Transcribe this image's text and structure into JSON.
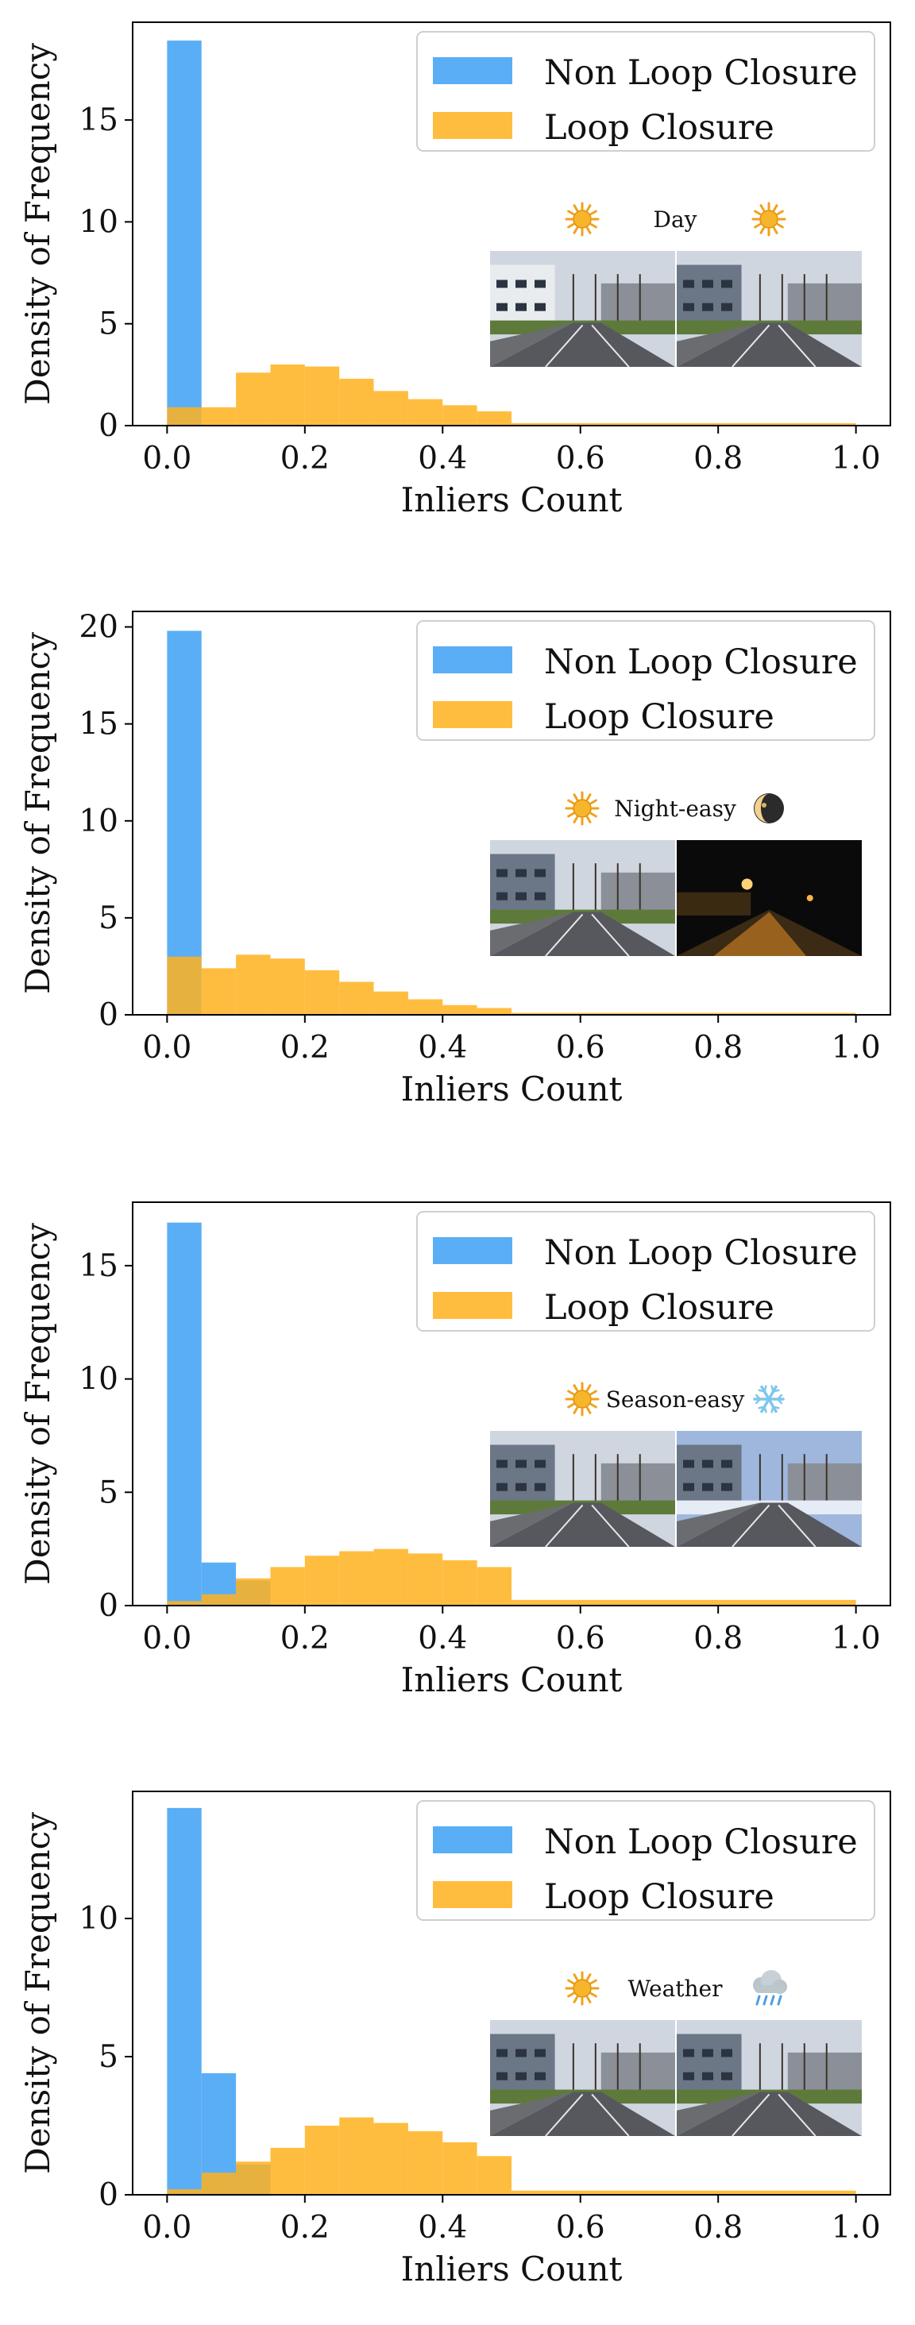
{
  "colors": {
    "non_loop": "#5aaef6",
    "loop": "#ffb21f",
    "overlap": "#c3a14a"
  },
  "chart_data": [
    {
      "type": "histogram",
      "condition_label": "Day",
      "condition_icons": [
        "sun-icon",
        "sun-icon"
      ],
      "xlabel": "Inliers Count",
      "ylabel": "Density of Frequency",
      "xlim": [
        -0.05,
        1.05
      ],
      "ylim": [
        0,
        19.8
      ],
      "xticks": [
        "0.0",
        "0.2",
        "0.4",
        "0.6",
        "0.8",
        "1.0"
      ],
      "yticks": [
        0,
        5,
        10,
        15
      ],
      "legend": {
        "position": "top-right"
      },
      "series": [
        {
          "name": "Non Loop Closure",
          "bins": [
            [
              0,
              0.05,
              18.9
            ]
          ]
        },
        {
          "name": "Loop Closure",
          "bins": [
            [
              0,
              0.05,
              0.9
            ],
            [
              0.05,
              0.1,
              0.9
            ],
            [
              0.1,
              0.15,
              2.6
            ],
            [
              0.15,
              0.2,
              3.0
            ],
            [
              0.2,
              0.25,
              2.9
            ],
            [
              0.25,
              0.3,
              2.3
            ],
            [
              0.3,
              0.35,
              1.7
            ],
            [
              0.35,
              0.4,
              1.3
            ],
            [
              0.4,
              0.45,
              1.0
            ],
            [
              0.45,
              0.5,
              0.7
            ],
            [
              0.5,
              1.0,
              0.12
            ]
          ]
        }
      ]
    },
    {
      "type": "histogram",
      "condition_label": "Night-easy",
      "condition_icons": [
        "sun-icon",
        "moon-icon"
      ],
      "xlabel": "Inliers Count",
      "ylabel": "Density of Frequency",
      "xlim": [
        -0.05,
        1.05
      ],
      "ylim": [
        0,
        20.8
      ],
      "xticks": [
        "0.0",
        "0.2",
        "0.4",
        "0.6",
        "0.8",
        "1.0"
      ],
      "yticks": [
        0,
        5,
        10,
        15,
        20
      ],
      "legend": {
        "position": "top-right"
      },
      "series": [
        {
          "name": "Non Loop Closure",
          "bins": [
            [
              0,
              0.05,
              19.8
            ]
          ]
        },
        {
          "name": "Loop Closure",
          "bins": [
            [
              0,
              0.05,
              3.0
            ],
            [
              0.05,
              0.1,
              2.4
            ],
            [
              0.1,
              0.15,
              3.1
            ],
            [
              0.15,
              0.2,
              2.9
            ],
            [
              0.2,
              0.25,
              2.3
            ],
            [
              0.25,
              0.3,
              1.7
            ],
            [
              0.3,
              0.35,
              1.2
            ],
            [
              0.35,
              0.4,
              0.8
            ],
            [
              0.4,
              0.45,
              0.5
            ],
            [
              0.45,
              0.5,
              0.35
            ],
            [
              0.5,
              1.0,
              0.1
            ]
          ]
        }
      ]
    },
    {
      "type": "histogram",
      "condition_label": "Season-easy",
      "condition_icons": [
        "sun-icon",
        "snowflake-icon"
      ],
      "xlabel": "Inliers Count",
      "ylabel": "Density of Frequency",
      "xlim": [
        -0.05,
        1.05
      ],
      "ylim": [
        0,
        17.8
      ],
      "xticks": [
        "0.0",
        "0.2",
        "0.4",
        "0.6",
        "0.8",
        "1.0"
      ],
      "yticks": [
        0,
        5,
        10,
        15
      ],
      "legend": {
        "position": "top-right"
      },
      "series": [
        {
          "name": "Non Loop Closure",
          "bins": [
            [
              0,
              0.05,
              16.9
            ],
            [
              0.05,
              0.1,
              1.9
            ],
            [
              0.1,
              0.15,
              1.1
            ]
          ]
        },
        {
          "name": "Loop Closure",
          "bins": [
            [
              0,
              0.05,
              0.2
            ],
            [
              0.05,
              0.1,
              0.5
            ],
            [
              0.1,
              0.15,
              1.2
            ],
            [
              0.15,
              0.2,
              1.7
            ],
            [
              0.2,
              0.25,
              2.2
            ],
            [
              0.25,
              0.3,
              2.4
            ],
            [
              0.3,
              0.35,
              2.5
            ],
            [
              0.35,
              0.4,
              2.3
            ],
            [
              0.4,
              0.45,
              2.0
            ],
            [
              0.45,
              0.5,
              1.7
            ],
            [
              0.5,
              1.0,
              0.25
            ]
          ]
        }
      ]
    },
    {
      "type": "histogram",
      "condition_label": "Weather",
      "condition_icons": [
        "sun-icon",
        "rain-cloud-icon"
      ],
      "xlabel": "Inliers Count",
      "ylabel": "Density of Frequency",
      "xlim": [
        -0.05,
        1.05
      ],
      "ylim": [
        0,
        14.6
      ],
      "xticks": [
        "0.0",
        "0.2",
        "0.4",
        "0.6",
        "0.8",
        "1.0"
      ],
      "yticks": [
        0,
        5,
        10
      ],
      "legend": {
        "position": "top-right"
      },
      "series": [
        {
          "name": "Non Loop Closure",
          "bins": [
            [
              0,
              0.05,
              14.0
            ],
            [
              0.05,
              0.1,
              4.4
            ],
            [
              0.1,
              0.15,
              1.1
            ]
          ]
        },
        {
          "name": "Loop Closure",
          "bins": [
            [
              0,
              0.05,
              0.2
            ],
            [
              0.05,
              0.1,
              0.8
            ],
            [
              0.1,
              0.15,
              1.2
            ],
            [
              0.15,
              0.2,
              1.7
            ],
            [
              0.2,
              0.25,
              2.5
            ],
            [
              0.25,
              0.3,
              2.8
            ],
            [
              0.3,
              0.35,
              2.6
            ],
            [
              0.35,
              0.4,
              2.3
            ],
            [
              0.4,
              0.45,
              1.9
            ],
            [
              0.45,
              0.5,
              1.4
            ],
            [
              0.5,
              1.0,
              0.15
            ]
          ]
        }
      ]
    }
  ]
}
